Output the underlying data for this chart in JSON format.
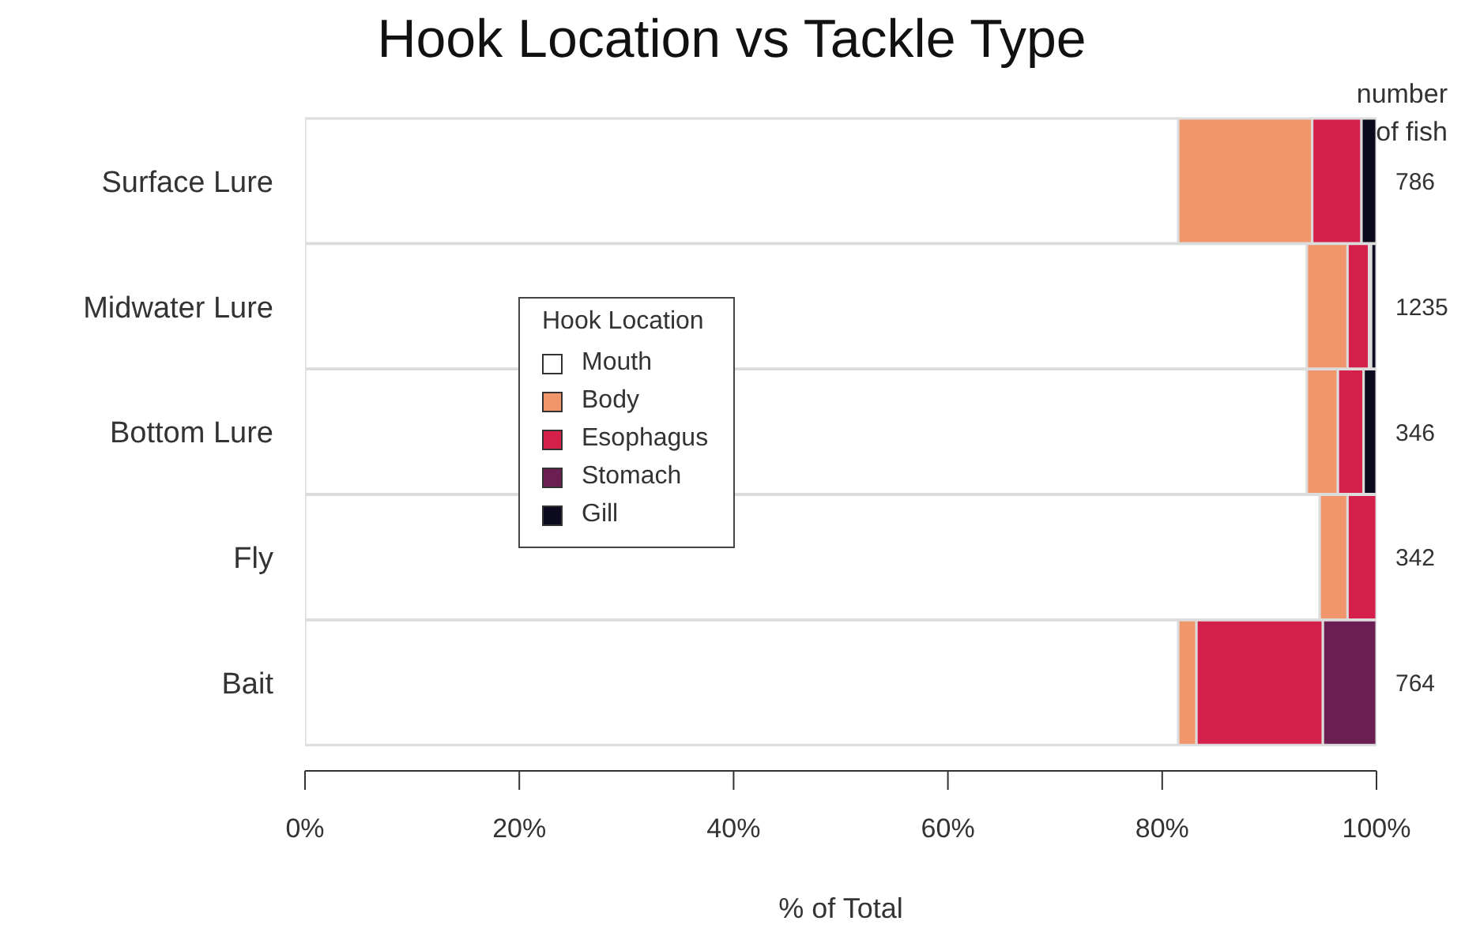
{
  "chart_data": {
    "type": "bar",
    "title": "Hook Location vs Tackle Type",
    "orientation": "horizontal",
    "stacked": true,
    "xlabel": "% of Total",
    "legend_title": "Hook Location",
    "legend": "center left",
    "categories": [
      "Surface Lure",
      "Midwater Lure",
      "Bottom Lure",
      "Fly",
      "Bait"
    ],
    "series": [
      {
        "name": "Mouth",
        "color": "#ffffff",
        "values": [
          81.5,
          93.5,
          93.5,
          94.7,
          81.5
        ]
      },
      {
        "name": "Body",
        "color": "#f1956a",
        "values": [
          12.5,
          3.8,
          2.9,
          2.6,
          1.7
        ]
      },
      {
        "name": "Esophagus",
        "color": "#d4204a",
        "values": [
          4.6,
          2.0,
          2.4,
          2.7,
          11.8
        ]
      },
      {
        "name": "Stomach",
        "color": "#6a1e52",
        "values": [
          0,
          0.2,
          0,
          0,
          5.0
        ]
      },
      {
        "name": "Gill",
        "color": "#0b0a1e",
        "values": [
          1.4,
          0.5,
          1.2,
          0,
          0
        ]
      }
    ],
    "xlim": [
      0,
      100
    ],
    "xticks": [
      {
        "value": 0,
        "label": "0%"
      },
      {
        "value": 20,
        "label": "20%"
      },
      {
        "value": 40,
        "label": "40%"
      },
      {
        "value": 60,
        "label": "60%"
      },
      {
        "value": 80,
        "label": "80%"
      },
      {
        "value": 100,
        "label": "100%"
      }
    ],
    "annotations": [
      "number\nof fish",
      "786",
      "1235",
      "346",
      "342",
      "764"
    ]
  }
}
